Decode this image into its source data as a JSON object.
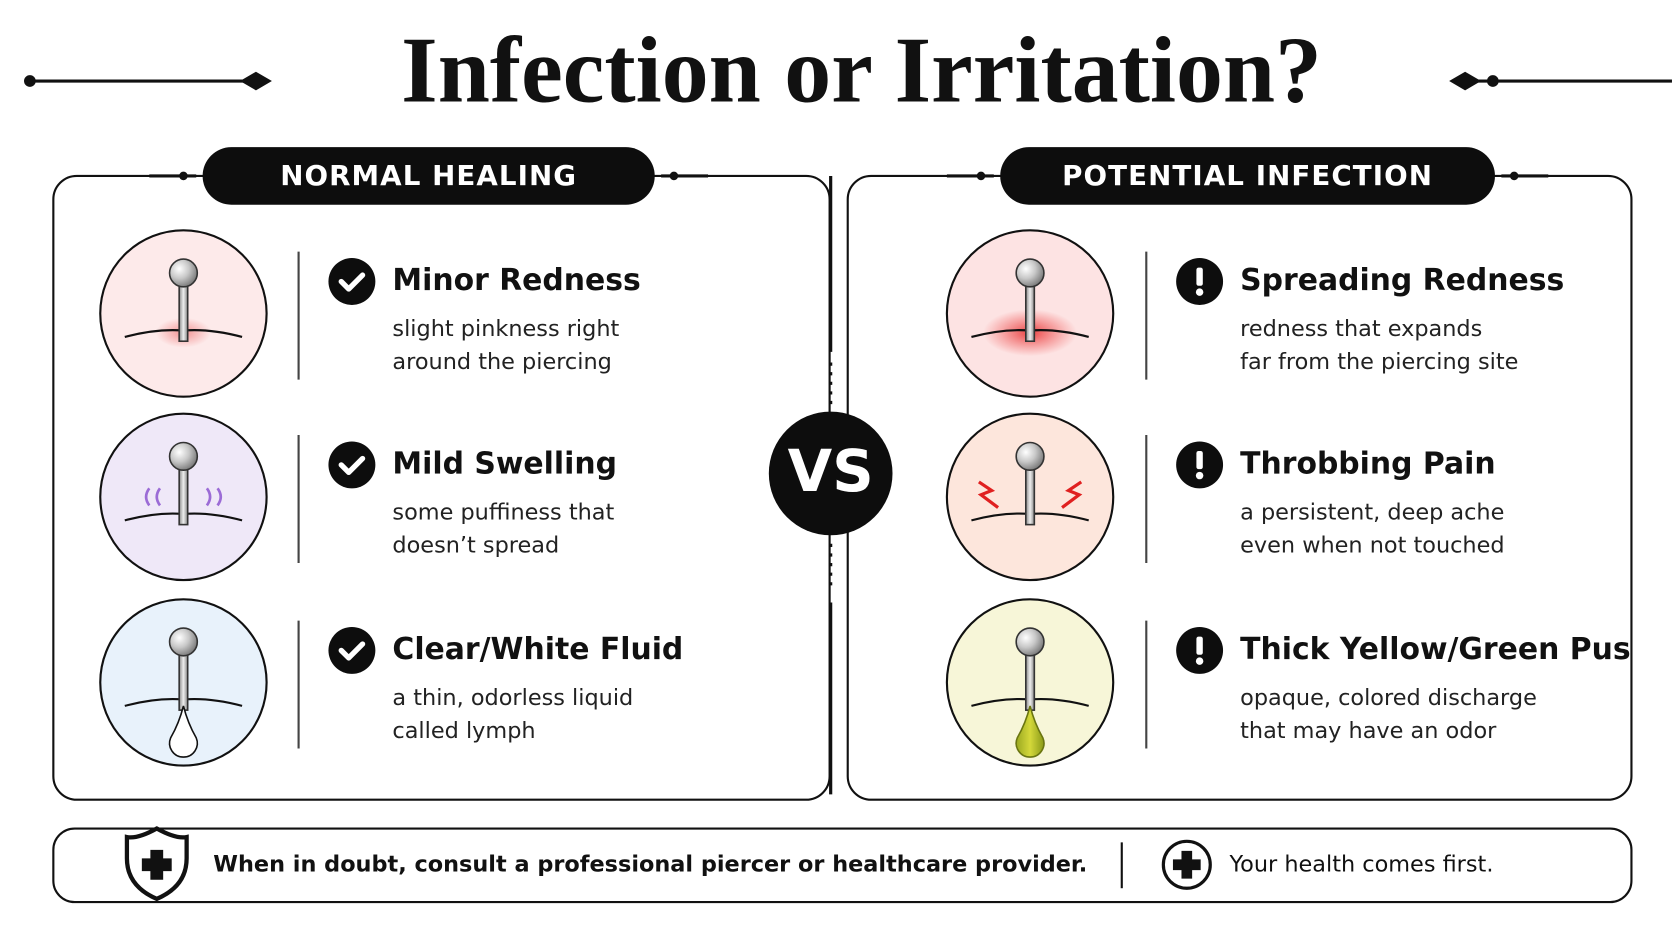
{
  "title": "Infection or Irritation?",
  "vs": "VS",
  "panels": [
    {
      "heading": "NORMAL HEALING",
      "items": [
        {
          "title": "Minor Redness",
          "lines": [
            "slight pinkness right",
            "around the piercing"
          ]
        },
        {
          "title": "Mild Swelling",
          "lines": [
            "some puffiness that",
            "doesn’t spread"
          ]
        },
        {
          "title": "Clear/White Fluid",
          "lines": [
            "a thin, odorless liquid",
            "called lymph"
          ]
        }
      ]
    },
    {
      "heading": "POTENTIAL INFECTION",
      "items": [
        {
          "title": "Spreading Redness",
          "lines": [
            "redness that expands",
            "far from the piercing site"
          ]
        },
        {
          "title": "Throbbing Pain",
          "lines": [
            "a persistent, deep ache",
            "even when not touched"
          ]
        },
        {
          "title": "Thick Yellow/Green Pus",
          "lines": [
            "opaque, colored discharge",
            "that may have an odor"
          ]
        }
      ]
    }
  ],
  "footer": {
    "note": "When in doubt, consult a professional piercer or healthcare provider.",
    "tagline": "Your health comes first."
  }
}
